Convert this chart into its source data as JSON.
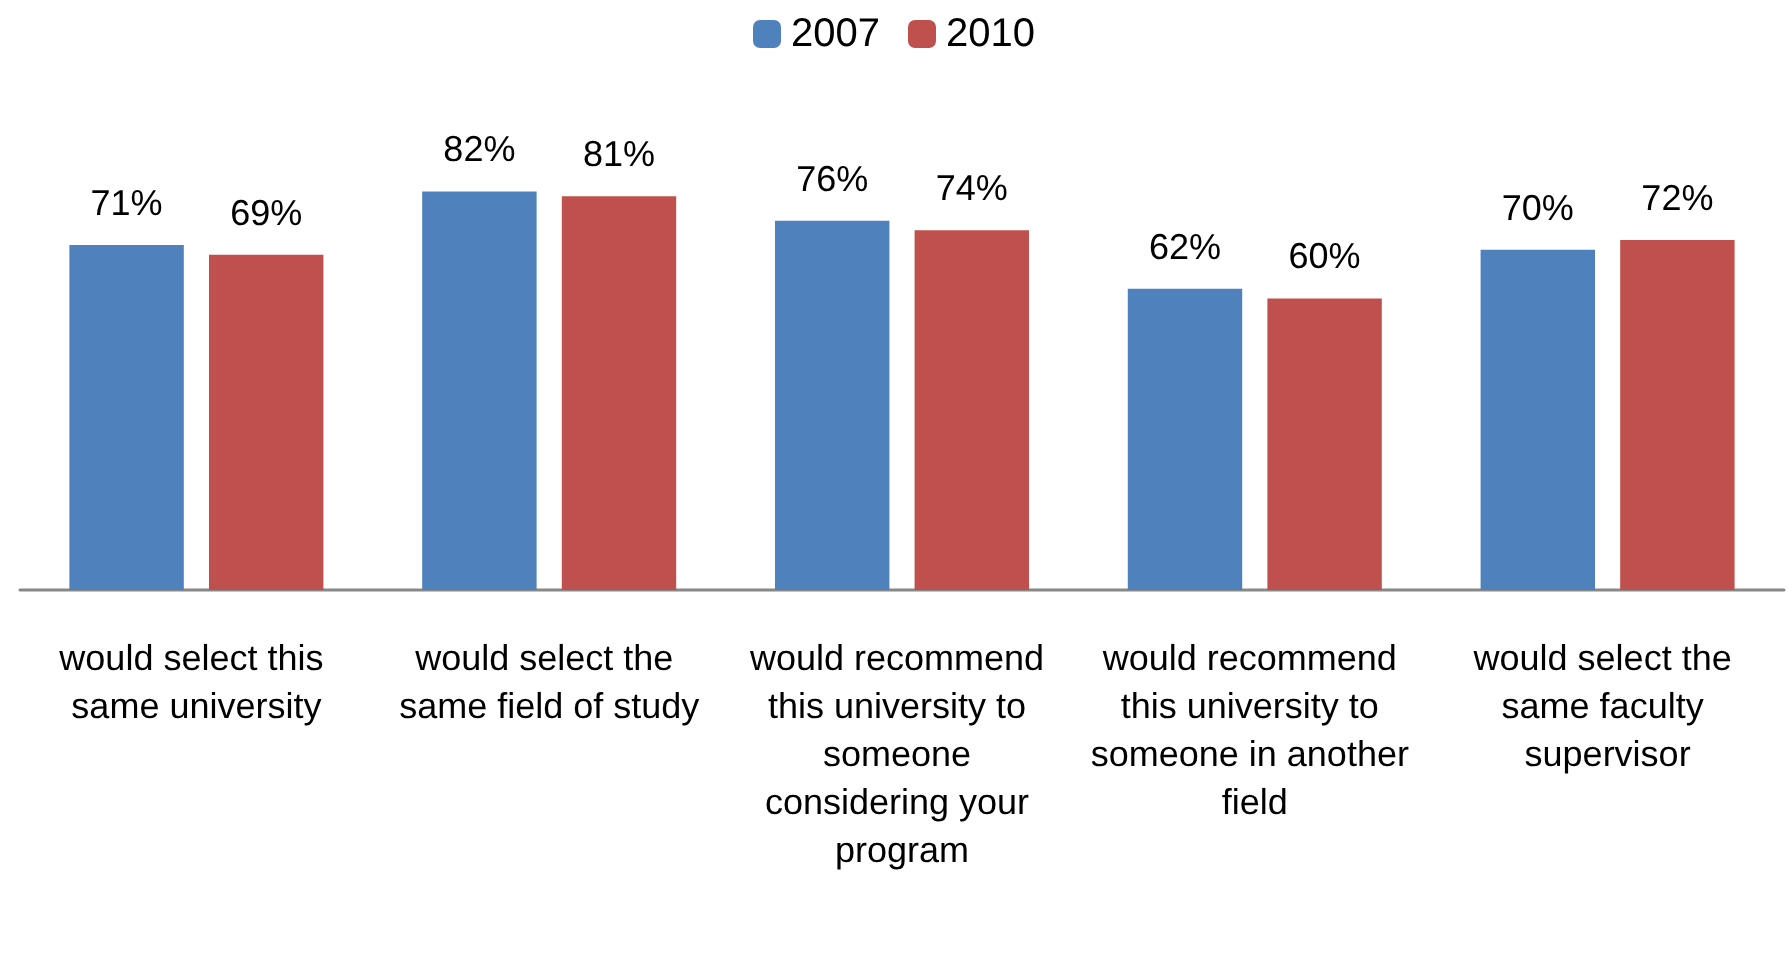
{
  "chart_data": {
    "type": "bar",
    "categories": [
      "would select this same university",
      "would select the same field of study",
      "would recommend this university to someone considering your program",
      "would recommend this university to someone in another field",
      "would select the same faculty supervisor"
    ],
    "series": [
      {
        "name": "2007",
        "color": "#4f81bd",
        "values": [
          71,
          82,
          76,
          62,
          70
        ],
        "value_labels": [
          "71%",
          "82%",
          "76%",
          "62%",
          "70%"
        ]
      },
      {
        "name": "2010",
        "color": "#c0504d",
        "values": [
          69,
          81,
          74,
          60,
          72
        ],
        "value_labels": [
          "69%",
          "81%",
          "74%",
          "60%",
          "72%"
        ]
      }
    ],
    "tick_labels": "x",
    "legend": "top"
  }
}
